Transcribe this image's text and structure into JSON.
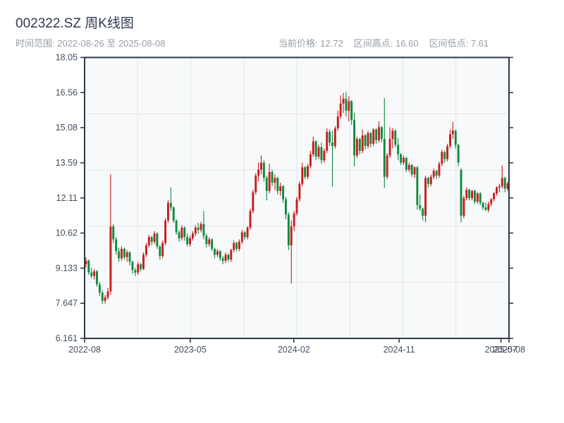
{
  "header": {
    "title": "002322.SZ 周K线图",
    "date_range": "时间范围: 2022-08-26 至 2025-08-08",
    "stats": [
      {
        "label": "当前价格:",
        "value": "12.72"
      },
      {
        "label": "区间高点:",
        "value": "16.60"
      },
      {
        "label": "区间低点:",
        "value": "7.61"
      }
    ]
  },
  "chart_data": {
    "type": "candlestick",
    "symbol": "002322.SZ",
    "frequency": "weekly",
    "start_date": "2022-08-26",
    "end_date": "2025-08-08",
    "current_price": 12.72,
    "range_high": 16.6,
    "range_low": 7.61,
    "ylim": [
      6.161,
      18.05
    ],
    "up_color": "#c81c1c",
    "down_color": "#0d8a3c",
    "plot_bg": "#f7f9fa",
    "grid_color": "#e3e6e8",
    "spine_color": "#2e3a49",
    "tick_label_color": "#44505e",
    "grid": {
      "h_fractions": [
        0.2,
        0.4,
        0.6,
        0.8
      ],
      "v_fractions": [
        0.125,
        0.25,
        0.375,
        0.5,
        0.625,
        0.75,
        0.875
      ]
    },
    "y_ticks": [
      "18.05",
      "16.56",
      "15.08",
      "13.59",
      "12.11",
      "10.62",
      "9.133",
      "7.647",
      "6.161"
    ],
    "x_ticks": [
      {
        "t": 0.0,
        "label": "2022-08"
      },
      {
        "t": 0.249,
        "label": "2023-05"
      },
      {
        "t": 0.493,
        "label": "2024-02"
      },
      {
        "t": 0.741,
        "label": "2024-11"
      },
      {
        "t": 0.981,
        "label": "2025-07"
      },
      {
        "t": 1.0,
        "label": "2025-08"
      }
    ],
    "candles": [
      [
        9.3,
        9.6,
        9.15,
        9.45
      ],
      [
        9.45,
        9.5,
        8.85,
        8.95
      ],
      [
        8.95,
        9.15,
        8.7,
        8.8
      ],
      [
        8.8,
        9.1,
        8.65,
        9.0
      ],
      [
        9.0,
        9.05,
        8.35,
        8.45
      ],
      [
        8.45,
        8.55,
        7.95,
        8.1
      ],
      [
        8.1,
        8.2,
        7.61,
        7.75
      ],
      [
        7.75,
        8.0,
        7.63,
        7.9
      ],
      [
        7.9,
        8.3,
        7.8,
        8.15
      ],
      [
        8.15,
        13.1,
        8.0,
        10.9
      ],
      [
        10.9,
        11.0,
        10.2,
        10.35
      ],
      [
        10.35,
        10.45,
        9.7,
        9.85
      ],
      [
        9.85,
        10.0,
        9.4,
        9.55
      ],
      [
        9.55,
        10.05,
        9.45,
        9.95
      ],
      [
        9.95,
        10.0,
        9.5,
        9.6
      ],
      [
        9.6,
        9.9,
        9.4,
        9.8
      ],
      [
        9.8,
        9.85,
        9.25,
        9.4
      ],
      [
        9.4,
        9.45,
        8.9,
        9.05
      ],
      [
        9.05,
        9.15,
        8.8,
        8.95
      ],
      [
        8.95,
        9.4,
        8.85,
        9.3
      ],
      [
        9.3,
        9.35,
        9.0,
        9.1
      ],
      [
        9.1,
        9.8,
        9.05,
        9.7
      ],
      [
        9.7,
        10.2,
        9.6,
        10.1
      ],
      [
        10.1,
        10.55,
        10.0,
        10.45
      ],
      [
        10.45,
        10.5,
        10.1,
        10.25
      ],
      [
        10.25,
        10.7,
        10.15,
        10.6
      ],
      [
        10.6,
        10.65,
        9.95,
        10.05
      ],
      [
        10.05,
        10.1,
        9.5,
        9.65
      ],
      [
        9.65,
        10.3,
        9.55,
        10.2
      ],
      [
        10.2,
        11.25,
        10.1,
        11.15
      ],
      [
        11.15,
        12.0,
        11.05,
        11.9
      ],
      [
        11.9,
        12.55,
        11.55,
        11.7
      ],
      [
        11.7,
        11.75,
        11.05,
        11.15
      ],
      [
        11.15,
        11.2,
        10.55,
        10.65
      ],
      [
        10.65,
        10.75,
        10.25,
        10.4
      ],
      [
        10.4,
        10.95,
        10.3,
        10.85
      ],
      [
        10.85,
        10.9,
        10.3,
        10.45
      ],
      [
        10.45,
        10.6,
        10.05,
        10.15
      ],
      [
        10.15,
        10.5,
        10.05,
        10.4
      ],
      [
        10.4,
        10.7,
        10.3,
        10.6
      ],
      [
        10.6,
        10.95,
        10.5,
        10.85
      ],
      [
        10.85,
        11.05,
        10.6,
        10.75
      ],
      [
        10.75,
        11.1,
        10.65,
        11.0
      ],
      [
        11.0,
        11.55,
        10.35,
        10.5
      ],
      [
        10.5,
        10.6,
        10.0,
        10.15
      ],
      [
        10.15,
        10.45,
        10.05,
        10.35
      ],
      [
        10.35,
        10.4,
        9.85,
        9.95
      ],
      [
        9.95,
        10.0,
        9.55,
        9.7
      ],
      [
        9.7,
        9.95,
        9.6,
        9.85
      ],
      [
        9.85,
        9.9,
        9.45,
        9.55
      ],
      [
        9.55,
        9.65,
        9.3,
        9.45
      ],
      [
        9.45,
        9.8,
        9.35,
        9.7
      ],
      [
        9.7,
        9.75,
        9.4,
        9.5
      ],
      [
        9.5,
        9.95,
        9.4,
        9.9
      ],
      [
        9.9,
        10.3,
        9.8,
        10.2
      ],
      [
        10.2,
        10.25,
        9.85,
        9.95
      ],
      [
        9.95,
        10.35,
        9.85,
        10.25
      ],
      [
        10.25,
        10.75,
        10.15,
        10.65
      ],
      [
        10.65,
        10.7,
        10.35,
        10.45
      ],
      [
        10.45,
        10.9,
        10.35,
        10.85
      ],
      [
        10.85,
        11.65,
        10.75,
        11.55
      ],
      [
        11.55,
        12.45,
        11.45,
        12.35
      ],
      [
        12.35,
        13.15,
        12.25,
        13.05
      ],
      [
        13.05,
        13.6,
        12.8,
        13.3
      ],
      [
        13.3,
        13.9,
        13.1,
        13.6
      ],
      [
        13.6,
        13.7,
        12.8,
        12.95
      ],
      [
        12.95,
        13.05,
        12.0,
        12.4
      ],
      [
        12.4,
        13.55,
        12.3,
        13.2
      ],
      [
        13.2,
        13.3,
        12.6,
        12.75
      ],
      [
        12.75,
        13.1,
        12.45,
        12.95
      ],
      [
        12.95,
        13.0,
        12.25,
        12.4
      ],
      [
        12.4,
        12.75,
        12.2,
        12.6
      ],
      [
        12.6,
        12.65,
        11.9,
        12.05
      ],
      [
        12.05,
        12.15,
        11.2,
        11.4
      ],
      [
        11.4,
        11.5,
        9.9,
        10.1
      ],
      [
        10.1,
        11.15,
        8.48,
        10.9
      ],
      [
        10.9,
        11.55,
        10.7,
        11.45
      ],
      [
        11.45,
        12.15,
        11.35,
        12.05
      ],
      [
        12.05,
        12.8,
        11.95,
        12.7
      ],
      [
        12.7,
        13.6,
        12.6,
        13.4
      ],
      [
        13.4,
        13.45,
        12.9,
        13.0
      ],
      [
        13.0,
        13.55,
        12.9,
        13.45
      ],
      [
        13.45,
        14.1,
        13.35,
        13.95
      ],
      [
        13.95,
        14.7,
        13.85,
        14.5
      ],
      [
        14.5,
        14.55,
        13.7,
        13.85
      ],
      [
        13.85,
        14.35,
        13.75,
        14.25
      ],
      [
        14.25,
        14.45,
        13.55,
        13.7
      ],
      [
        13.7,
        14.2,
        13.6,
        14.1
      ],
      [
        14.1,
        15.05,
        14.0,
        14.9
      ],
      [
        14.9,
        15.0,
        14.3,
        14.45
      ],
      [
        14.45,
        14.95,
        12.58,
        14.3
      ],
      [
        14.3,
        15.15,
        14.2,
        15.05
      ],
      [
        15.05,
        15.8,
        14.95,
        15.55
      ],
      [
        15.55,
        16.45,
        15.45,
        16.1
      ],
      [
        16.1,
        16.55,
        15.7,
        16.3
      ],
      [
        16.3,
        16.6,
        15.55,
        15.8
      ],
      [
        15.8,
        16.4,
        15.35,
        16.2
      ],
      [
        16.2,
        16.25,
        15.2,
        15.4
      ],
      [
        15.4,
        15.7,
        13.45,
        13.9
      ],
      [
        13.9,
        14.7,
        13.8,
        14.6
      ],
      [
        14.6,
        14.65,
        13.95,
        14.1
      ],
      [
        14.1,
        15.0,
        14.0,
        14.75
      ],
      [
        14.75,
        14.8,
        14.15,
        14.3
      ],
      [
        14.3,
        14.95,
        14.2,
        14.85
      ],
      [
        14.85,
        14.9,
        14.25,
        14.4
      ],
      [
        14.4,
        15.05,
        14.3,
        15.0
      ],
      [
        15.0,
        15.05,
        14.4,
        14.55
      ],
      [
        14.55,
        15.35,
        14.45,
        15.1
      ],
      [
        15.1,
        15.15,
        14.45,
        14.6
      ],
      [
        14.6,
        16.33,
        12.53,
        13.0
      ],
      [
        13.0,
        14.0,
        12.9,
        13.9
      ],
      [
        13.9,
        15.1,
        13.8,
        14.6
      ],
      [
        14.6,
        15.06,
        14.2,
        14.95
      ],
      [
        14.95,
        15.0,
        14.25,
        14.35
      ],
      [
        14.35,
        14.65,
        13.7,
        13.95
      ],
      [
        13.95,
        14.0,
        13.5,
        13.6
      ],
      [
        13.6,
        13.9,
        13.5,
        13.8
      ],
      [
        13.8,
        13.85,
        13.2,
        13.3
      ],
      [
        13.3,
        13.6,
        13.2,
        13.5
      ],
      [
        13.5,
        13.55,
        13.0,
        13.1
      ],
      [
        13.1,
        13.45,
        12.95,
        13.4
      ],
      [
        13.4,
        13.45,
        11.6,
        11.8
      ],
      [
        11.8,
        12.25,
        11.55,
        11.65
      ],
      [
        11.65,
        11.7,
        11.15,
        11.35
      ],
      [
        11.35,
        13.05,
        11.07,
        12.95
      ],
      [
        12.95,
        13.0,
        12.55,
        12.7
      ],
      [
        12.7,
        13.1,
        12.6,
        13.0
      ],
      [
        13.0,
        13.35,
        12.9,
        13.25
      ],
      [
        13.25,
        13.3,
        12.9,
        13.05
      ],
      [
        13.05,
        13.65,
        12.95,
        13.55
      ],
      [
        13.55,
        14.15,
        13.45,
        14.05
      ],
      [
        14.05,
        14.1,
        13.6,
        13.75
      ],
      [
        13.75,
        14.4,
        13.65,
        14.3
      ],
      [
        14.3,
        15.0,
        14.2,
        14.8
      ],
      [
        14.8,
        15.33,
        14.6,
        14.95
      ],
      [
        14.95,
        15.0,
        14.2,
        14.35
      ],
      [
        14.35,
        14.4,
        13.45,
        13.6
      ],
      [
        13.3,
        13.35,
        11.07,
        11.35
      ],
      [
        11.35,
        12.2,
        11.25,
        12.1
      ],
      [
        12.1,
        12.55,
        12.0,
        12.45
      ],
      [
        12.45,
        12.5,
        12.0,
        12.1
      ],
      [
        12.1,
        12.45,
        12.0,
        12.4
      ],
      [
        12.4,
        12.45,
        11.85,
        11.95
      ],
      [
        11.95,
        12.35,
        11.85,
        12.3
      ],
      [
        12.3,
        12.35,
        11.8,
        11.9
      ],
      [
        11.9,
        11.95,
        11.6,
        11.7
      ],
      [
        11.7,
        11.9,
        11.55,
        11.6
      ],
      [
        11.6,
        11.95,
        11.5,
        11.85
      ],
      [
        11.85,
        12.1,
        11.75,
        12.05
      ],
      [
        12.05,
        12.35,
        11.95,
        12.3
      ],
      [
        12.3,
        12.6,
        12.2,
        12.55
      ],
      [
        12.55,
        12.7,
        12.35,
        12.6
      ],
      [
        12.6,
        13.48,
        12.5,
        12.95
      ],
      [
        12.95,
        13.0,
        12.35,
        12.5
      ],
      [
        12.5,
        12.8,
        12.4,
        12.72
      ]
    ]
  }
}
